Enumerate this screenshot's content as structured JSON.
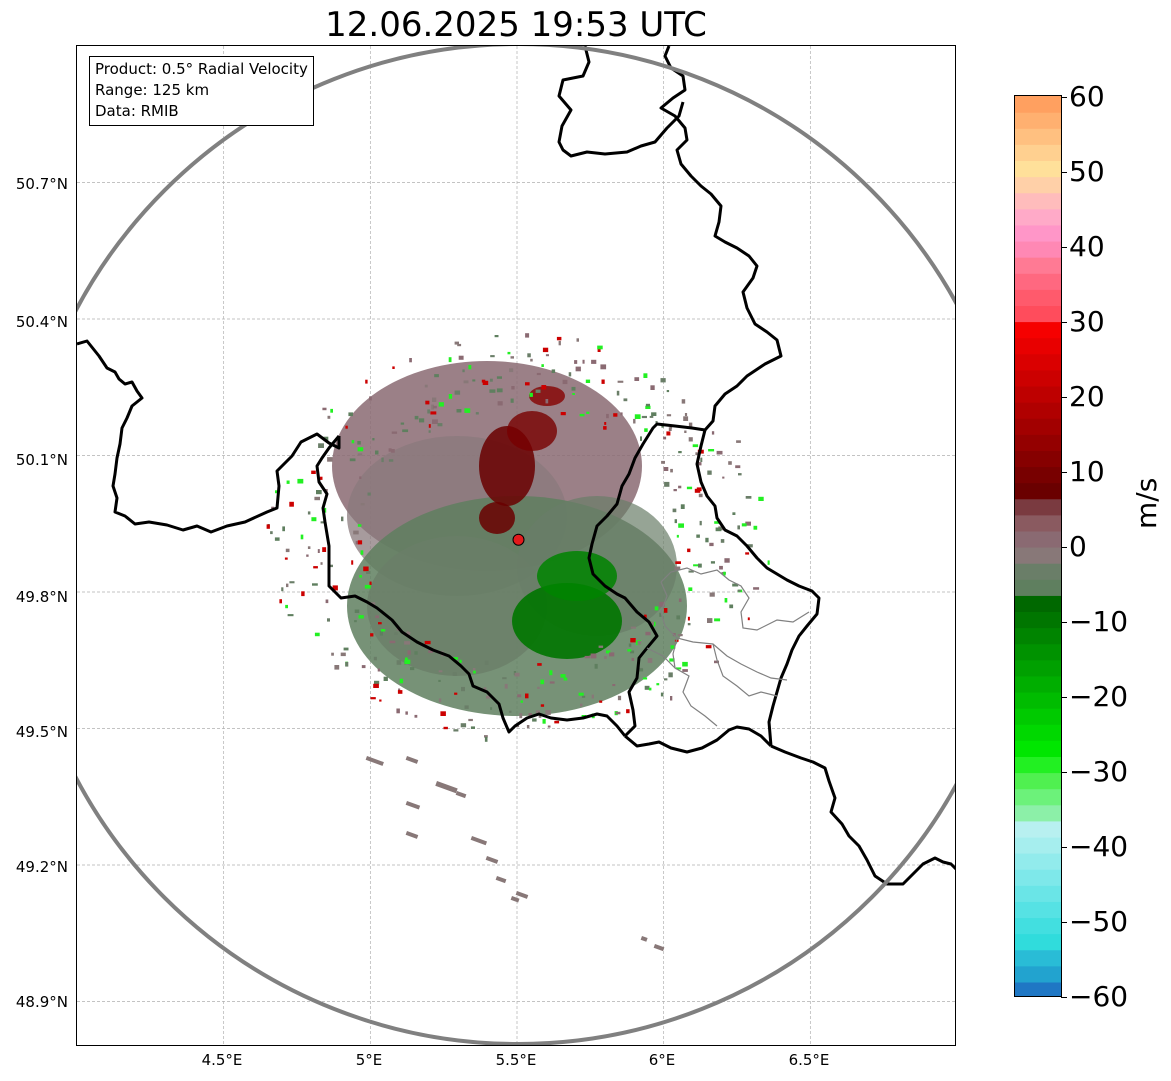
{
  "title": "12.06.2025 19:53 UTC",
  "info_box": {
    "product": "Product: 0.5° Radial Velocity",
    "range": "Range: 125 km",
    "data": "Data: RMIB"
  },
  "axes": {
    "lon_ticks": [
      "4.5°E",
      "5°E",
      "5.5°E",
      "6°E",
      "6.5°E"
    ],
    "lat_ticks": [
      "50.7°N",
      "50.4°N",
      "50.1°N",
      "49.8°N",
      "49.5°N",
      "49.2°N",
      "48.9°N"
    ],
    "lon_values": [
      4.5,
      5.0,
      5.5,
      6.0,
      6.5
    ],
    "lat_values": [
      50.7,
      50.4,
      50.1,
      49.8,
      49.5,
      49.2,
      48.9
    ],
    "extent": {
      "lon_min": 4.0,
      "lon_max": 7.0,
      "lat_min": 48.8,
      "lat_max": 51.0
    }
  },
  "radar_site": {
    "lon": 5.505,
    "lat": 49.915,
    "marker_color": "#e31a1c"
  },
  "colorbar": {
    "unit": "m/s",
    "ticks": [
      "60",
      "50",
      "40",
      "30",
      "20",
      "10",
      "0",
      "−10",
      "−20",
      "−30",
      "−40",
      "−50",
      "−60"
    ],
    "range": [
      -60,
      60
    ],
    "colors_low_to_high": [
      "#1f77c4",
      "#22a3cf",
      "#29bcd6",
      "#30dcdc",
      "#42dfe0",
      "#56e2e4",
      "#6ae5e7",
      "#7ee8ea",
      "#92ebec",
      "#a6eeee",
      "#b8f0f0",
      "#8cf0a8",
      "#6cf27a",
      "#50f050",
      "#22f022",
      "#00e600",
      "#00d800",
      "#00ca00",
      "#00bc00",
      "#00ae00",
      "#00a000",
      "#009200",
      "#008400",
      "#007600",
      "#006800",
      "#5f7f5f",
      "#6a7e68",
      "#887878",
      "#8a6a72",
      "#8a5a60",
      "#7a3a40",
      "#6a0000",
      "#780000",
      "#860000",
      "#940000",
      "#a20000",
      "#b00000",
      "#be0000",
      "#cc0000",
      "#da0000",
      "#e80000",
      "#f60000",
      "#ff4c5c",
      "#ff5a6c",
      "#ff6880",
      "#ff7a94",
      "#ff88b4",
      "#ff96c8",
      "#ffaac8",
      "#ffbcbc",
      "#ffd0a8",
      "#ffe09a",
      "#ffd090",
      "#ffc080",
      "#ffb070",
      "#ffa060"
    ]
  },
  "colors": {
    "range_ring": "#808080",
    "border": "#000000",
    "admin_border": "#808080",
    "grid": "#b0b0b0"
  }
}
